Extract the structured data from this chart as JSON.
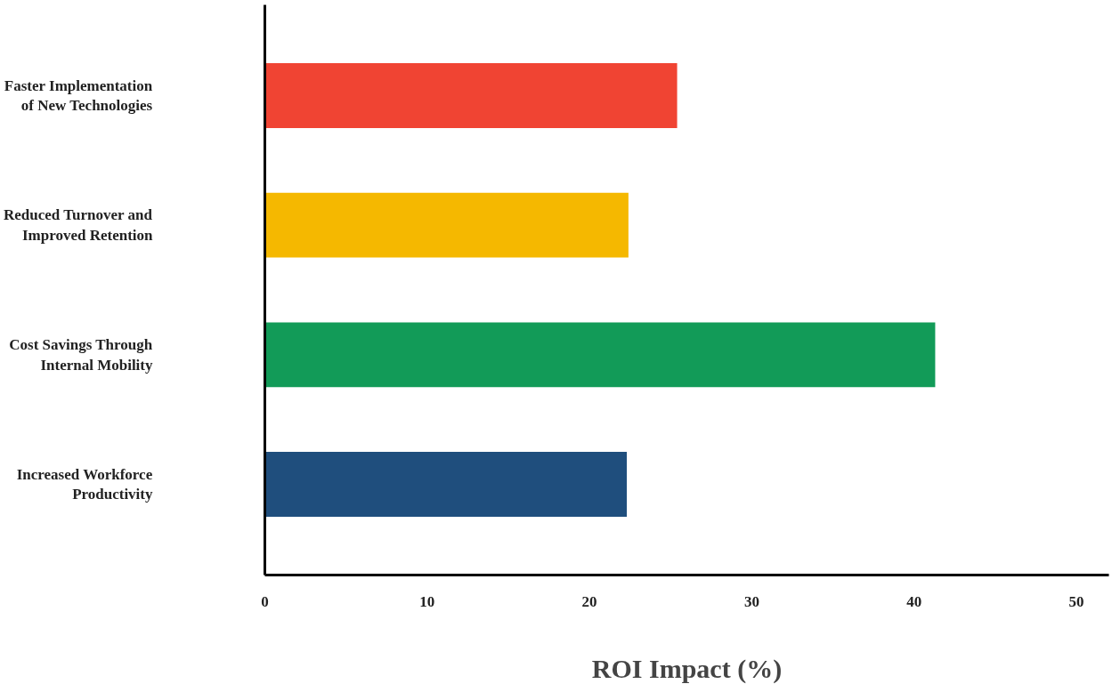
{
  "chart_data": {
    "type": "bar",
    "orientation": "horizontal",
    "xlabel": "ROI Impact (%)",
    "categories": [
      "Faster Implementation of New Technologies",
      "Reduced Turnover and Improved Retention",
      "Cost Savings Through Internal Mobility",
      "Increased Workforce Productivity"
    ],
    "values": [
      25.4,
      22.4,
      41.3,
      22.3
    ],
    "colors": [
      "#f04433",
      "#f5b800",
      "#129b58",
      "#1f4e7d"
    ],
    "xlim": [
      0,
      52
    ],
    "xticks": [
      0,
      10,
      20,
      30,
      40,
      50
    ],
    "grid": false
  }
}
